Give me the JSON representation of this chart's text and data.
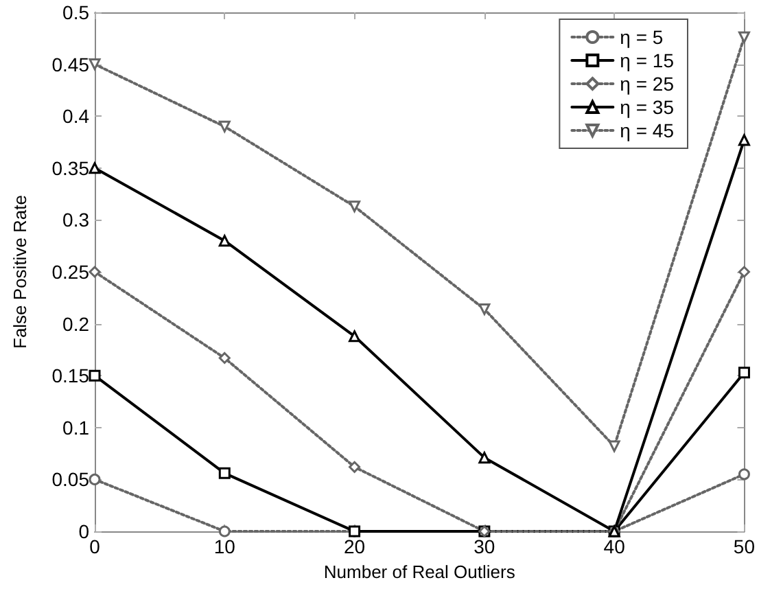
{
  "chart_data": {
    "type": "line",
    "xlabel": "Number of Real Outliers",
    "ylabel": "False Positive Rate",
    "x": [
      0,
      10,
      20,
      30,
      40,
      50
    ],
    "series": [
      {
        "name": "η = 5",
        "color": "#666666",
        "marker": "circle",
        "line_style": "dotted",
        "values": [
          0.05,
          0,
          0,
          0,
          0,
          0.055
        ]
      },
      {
        "name": "η = 15",
        "color": "#000000",
        "marker": "square",
        "line_style": "solid",
        "values": [
          0.15,
          0.056,
          0,
          0,
          0,
          0.153
        ]
      },
      {
        "name": "η = 25",
        "color": "#666666",
        "marker": "diamond",
        "line_style": "dotted",
        "values": [
          0.25,
          0.167,
          0.062,
          0,
          0,
          0.25
        ]
      },
      {
        "name": "η = 35",
        "color": "#000000",
        "marker": "triangle",
        "line_style": "solid",
        "values": [
          0.35,
          0.28,
          0.188,
          0.071,
          0,
          0.377
        ]
      },
      {
        "name": "η = 45",
        "color": "#666666",
        "marker": "triangle_down",
        "line_style": "dotted",
        "values": [
          0.45,
          0.39,
          0.313,
          0.214,
          0.082,
          0.476
        ]
      }
    ],
    "xlim": [
      0,
      50
    ],
    "xticks": [
      0,
      10,
      20,
      30,
      40,
      50
    ],
    "ylim": [
      0,
      0.5
    ],
    "yticks": [
      0,
      0.05,
      0.1,
      0.15,
      0.2,
      0.25,
      0.3,
      0.35,
      0.4,
      0.45,
      0.5
    ],
    "grid": false,
    "legend": "top right"
  }
}
